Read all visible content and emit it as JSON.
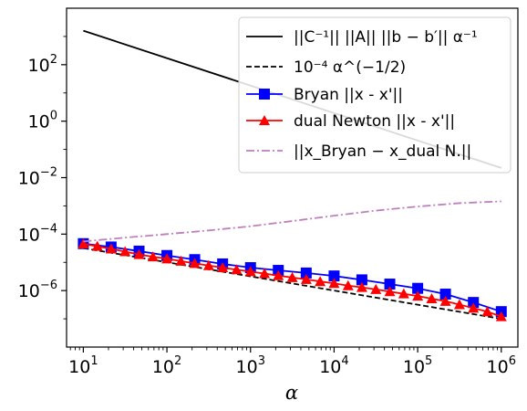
{
  "chart_data": {
    "type": "line",
    "xscale": "log",
    "yscale": "log",
    "xlim": [
      6.3,
      1580000
    ],
    "ylim": [
      1e-08,
      10000
    ],
    "xlabel": "α",
    "ylabel": "",
    "title": "",
    "grid": false,
    "legend_position": "top-right",
    "x_ticks": [
      {
        "value": 10,
        "base": "10",
        "exp": "1"
      },
      {
        "value": 100,
        "base": "10",
        "exp": "2"
      },
      {
        "value": 1000,
        "base": "10",
        "exp": "3"
      },
      {
        "value": 10000,
        "base": "10",
        "exp": "4"
      },
      {
        "value": 100000,
        "base": "10",
        "exp": "5"
      },
      {
        "value": 1000000,
        "base": "10",
        "exp": "6"
      }
    ],
    "y_ticks": [
      {
        "value": 1e-06,
        "base": "10",
        "exp": "−6"
      },
      {
        "value": 0.0001,
        "base": "10",
        "exp": "−4"
      },
      {
        "value": 0.01,
        "base": "10",
        "exp": "−2"
      },
      {
        "value": 1,
        "base": "10",
        "exp": "0"
      },
      {
        "value": 100,
        "base": "10",
        "exp": "2"
      }
    ],
    "series": [
      {
        "name": "||C⁻¹|| ||A|| ||b − b′|| α⁻¹",
        "color": "#000000",
        "style": "solid",
        "marker": "none",
        "x": [
          10,
          1000000
        ],
        "y": [
          1600,
          0.022
        ]
      },
      {
        "name": "10⁻⁴ α^(−1/2)",
        "color": "#000000",
        "style": "dashed",
        "marker": "none",
        "x": [
          10,
          1000000
        ],
        "y": [
          3.2e-05,
          1e-07
        ]
      },
      {
        "name": "Bryan ||x - x'||",
        "color": "#0000ff",
        "style": "solid",
        "marker": "square",
        "x": [
          10,
          21.5,
          46.4,
          100,
          215,
          464,
          1000,
          2150,
          4640,
          10000,
          21500,
          46400,
          100000,
          215000,
          464000,
          1000000
        ],
        "y": [
          4.6e-05,
          3.5e-05,
          2.5e-05,
          1.75e-05,
          1.25e-05,
          8.8e-06,
          6.5e-06,
          5.2e-06,
          4.2e-06,
          3.3e-06,
          2.4e-06,
          1.7e-06,
          1.2e-06,
          7.5e-07,
          3.8e-07,
          1.8e-07
        ]
      },
      {
        "name": "dual Newton ||x - x'||",
        "color": "#ff0000",
        "style": "solid",
        "marker": "triangle",
        "x": [
          10,
          14.7,
          21.5,
          31.6,
          46.4,
          68.1,
          100,
          147,
          215,
          316,
          464,
          681,
          1000,
          1470,
          2150,
          3160,
          4640,
          6810,
          10000,
          14700,
          21500,
          31600,
          46400,
          68100,
          100000,
          147000,
          215000,
          316000,
          464000,
          681000,
          1000000
        ],
        "y": [
          4.5e-05,
          3.7e-05,
          3e-05,
          2.4e-05,
          1.9e-05,
          1.58e-05,
          1.34e-05,
          1.11e-05,
          9.2e-06,
          7.7e-06,
          6.5e-06,
          5.5e-06,
          4.7e-06,
          4e-06,
          3.4e-06,
          2.9e-06,
          2.5e-06,
          2.1e-06,
          1.8e-06,
          1.5e-06,
          1.3e-06,
          1.1e-06,
          9.2e-07,
          7.7e-07,
          6.4e-07,
          5.2e-07,
          4.2e-07,
          3.2e-07,
          2.4e-07,
          1.8e-07,
          1.2e-07
        ]
      },
      {
        "name": "||x_Bryan − x_dual N.||",
        "color": "#bf7fbf",
        "style": "dashdot",
        "marker": "none",
        "x": [
          10,
          31.6,
          100,
          316,
          1000,
          3160,
          10000,
          31600,
          100000,
          316000,
          1000000
        ],
        "y": [
          5.5e-05,
          7.5e-05,
          0.0001,
          0.000135,
          0.00019,
          0.00029,
          0.00045,
          0.00068,
          0.00095,
          0.00125,
          0.00145
        ]
      }
    ]
  },
  "legend": [
    {
      "key": "solid-line",
      "text": "||C⁻¹|| ||A|| ||b − b′|| α⁻¹"
    },
    {
      "key": "dashed-line",
      "text": "10⁻⁴ α^(−1/2)"
    },
    {
      "key": "bryan",
      "text": "Bryan ||x - x'||"
    },
    {
      "key": "dual-newton",
      "text": "dual Newton ||x - x'||"
    },
    {
      "key": "diff",
      "text": "||x_Bryan − x_dual N.||"
    }
  ]
}
